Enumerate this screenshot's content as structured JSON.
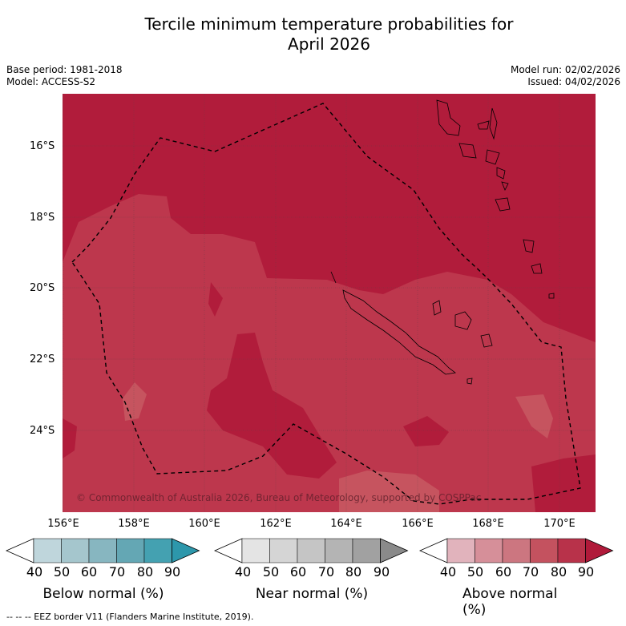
{
  "header": {
    "title_line1": "Tercile minimum temperature probabilities for",
    "title_line2": "April 2026",
    "base_period": "Base period: 1981-2018",
    "model": "Model: ACCESS-S2",
    "model_run": "Model run: 02/02/2026",
    "issued": "Issued: 04/02/2026"
  },
  "map": {
    "lat_labels": [
      "16°S",
      "18°S",
      "20°S",
      "22°S",
      "24°S"
    ],
    "lon_labels": [
      "156°E",
      "158°E",
      "160°E",
      "162°E",
      "164°E",
      "166°E",
      "168°E",
      "170°E"
    ],
    "copyright": "© Commonwealth of Australia 2026, Bureau of Meteorology, supported by COSPPac",
    "colors": {
      "above_90": "#b11c3b",
      "above_80": "#bd374d",
      "above_70": "#c6545f",
      "land_outline": "#000000",
      "eez_border": "#000000"
    }
  },
  "legend": {
    "ticks": [
      "40",
      "50",
      "60",
      "70",
      "80",
      "90"
    ],
    "below": {
      "label": "Below normal (%)",
      "colors": [
        "#ffffff",
        "#bfd6dc",
        "#a5c6cd",
        "#87b6c0",
        "#64a7b4",
        "#44a1b1",
        "#2d97ab"
      ]
    },
    "near": {
      "label": "Near normal (%)",
      "colors": [
        "#ffffff",
        "#e4e4e4",
        "#d5d5d5",
        "#c5c5c5",
        "#b4b4b4",
        "#a1a1a1",
        "#8a8a8a"
      ]
    },
    "above": {
      "label": "Above normal (%)",
      "colors": [
        "#ffffff",
        "#e1b3bc",
        "#d68f99",
        "#cc7680",
        "#c4525f",
        "#b8324a",
        "#b01a3a"
      ]
    }
  },
  "footnote": "--  --  -- EEZ border V11 (Flanders Marine Institute, 2019)."
}
